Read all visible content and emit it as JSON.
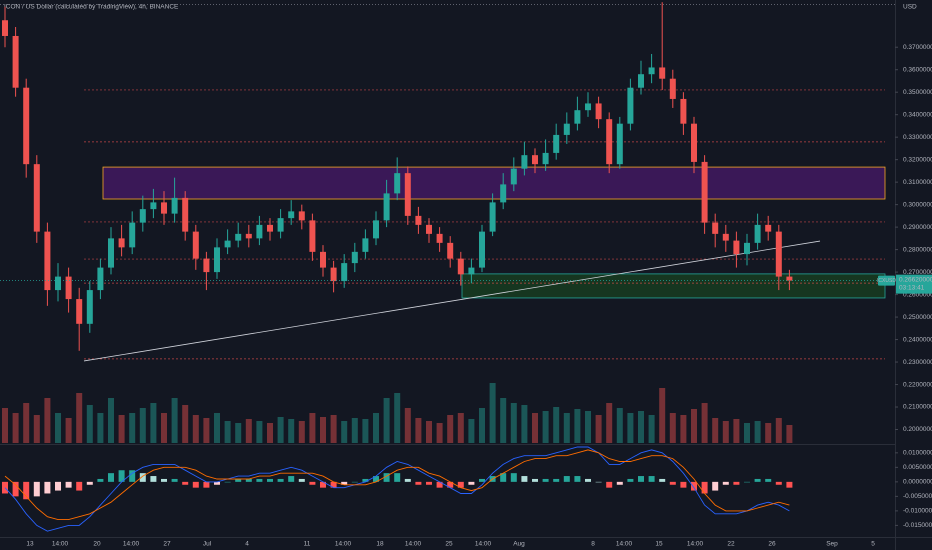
{
  "chart_data": {
    "type": "candlestick",
    "title": "ICON / US Dollar (calculated by TradingView), 4h, BINANCE",
    "axis_unit": "USD",
    "x_labels": [
      "13",
      "14:00",
      "20",
      "14:00",
      "27",
      "Jul",
      "4",
      "11",
      "14:00",
      "18",
      "14:00",
      "25",
      "14:00",
      "Aug",
      "8",
      "14:00",
      "15",
      "14:00",
      "22",
      "26",
      "Sep",
      "5"
    ],
    "open": [
      0.382,
      0.375,
      0.352,
      0.318,
      0.288,
      0.262,
      0.268,
      0.258,
      0.247,
      0.262,
      0.272,
      0.285,
      0.281,
      0.292,
      0.298,
      0.301,
      0.296,
      0.303,
      0.288,
      0.276,
      0.27,
      0.281,
      0.284,
      0.287,
      0.285,
      0.291,
      0.288,
      0.294,
      0.297,
      0.293,
      0.279,
      0.272,
      0.266,
      0.274,
      0.279,
      0.285,
      0.293,
      0.305,
      0.314,
      0.295,
      0.291,
      0.287,
      0.283,
      0.276,
      0.269,
      0.272,
      0.288,
      0.301,
      0.309,
      0.316,
      0.322,
      0.318,
      0.323,
      0.331,
      0.336,
      0.342,
      0.345,
      0.338,
      0.318,
      0.336,
      0.352,
      0.358,
      0.361,
      0.356,
      0.347,
      0.336,
      0.319,
      0.292,
      0.287,
      0.284,
      0.278,
      0.283,
      0.291,
      0.288,
      0.268
    ],
    "high": [
      0.388,
      0.379,
      0.356,
      0.322,
      0.292,
      0.274,
      0.272,
      0.263,
      0.266,
      0.276,
      0.29,
      0.291,
      0.297,
      0.304,
      0.307,
      0.306,
      0.312,
      0.306,
      0.291,
      0.279,
      0.285,
      0.289,
      0.292,
      0.291,
      0.295,
      0.294,
      0.298,
      0.302,
      0.3,
      0.296,
      0.282,
      0.275,
      0.278,
      0.283,
      0.289,
      0.297,
      0.311,
      0.321,
      0.317,
      0.299,
      0.294,
      0.29,
      0.286,
      0.279,
      0.276,
      0.291,
      0.305,
      0.314,
      0.321,
      0.328,
      0.325,
      0.329,
      0.336,
      0.341,
      0.348,
      0.35,
      0.348,
      0.341,
      0.339,
      0.356,
      0.364,
      0.367,
      0.39,
      0.36,
      0.35,
      0.339,
      0.322,
      0.296,
      0.291,
      0.288,
      0.287,
      0.296,
      0.295,
      0.291,
      0.271
    ],
    "low": [
      0.37,
      0.348,
      0.312,
      0.283,
      0.255,
      0.257,
      0.252,
      0.235,
      0.243,
      0.258,
      0.269,
      0.277,
      0.278,
      0.288,
      0.294,
      0.291,
      0.292,
      0.284,
      0.271,
      0.262,
      0.267,
      0.278,
      0.281,
      0.281,
      0.282,
      0.284,
      0.285,
      0.291,
      0.289,
      0.275,
      0.268,
      0.261,
      0.263,
      0.27,
      0.276,
      0.282,
      0.29,
      0.302,
      0.291,
      0.287,
      0.283,
      0.279,
      0.272,
      0.264,
      0.265,
      0.27,
      0.286,
      0.298,
      0.306,
      0.313,
      0.314,
      0.315,
      0.32,
      0.327,
      0.333,
      0.339,
      0.334,
      0.314,
      0.316,
      0.333,
      0.349,
      0.354,
      0.351,
      0.343,
      0.331,
      0.314,
      0.287,
      0.281,
      0.279,
      0.272,
      0.273,
      0.28,
      0.284,
      0.262,
      0.262
    ],
    "close": [
      0.375,
      0.352,
      0.318,
      0.288,
      0.262,
      0.268,
      0.258,
      0.247,
      0.262,
      0.272,
      0.285,
      0.281,
      0.292,
      0.298,
      0.301,
      0.296,
      0.303,
      0.288,
      0.276,
      0.27,
      0.281,
      0.284,
      0.287,
      0.285,
      0.291,
      0.288,
      0.294,
      0.297,
      0.293,
      0.279,
      0.272,
      0.266,
      0.274,
      0.279,
      0.285,
      0.293,
      0.305,
      0.314,
      0.295,
      0.291,
      0.287,
      0.283,
      0.276,
      0.269,
      0.272,
      0.288,
      0.301,
      0.309,
      0.316,
      0.322,
      0.318,
      0.323,
      0.331,
      0.336,
      0.342,
      0.345,
      0.338,
      0.318,
      0.336,
      0.352,
      0.358,
      0.361,
      0.356,
      0.347,
      0.336,
      0.319,
      0.292,
      0.287,
      0.284,
      0.278,
      0.283,
      0.291,
      0.288,
      0.268,
      0.2662
    ],
    "up_color": "#26a69a",
    "down_color": "#ef5350",
    "ylim": [
      0.194,
      0.391
    ],
    "yticks": [
      {
        "value": 0.37,
        "label": "0.37000000"
      },
      {
        "value": 0.36,
        "label": "0.36000000"
      },
      {
        "value": 0.35,
        "label": "0.35000000"
      },
      {
        "value": 0.34,
        "label": "0.34000000"
      },
      {
        "value": 0.33,
        "label": "0.33000000"
      },
      {
        "value": 0.32,
        "label": "0.32000000"
      },
      {
        "value": 0.31,
        "label": "0.31000000"
      },
      {
        "value": 0.3,
        "label": "0.30000000"
      },
      {
        "value": 0.29,
        "label": "0.29000000"
      },
      {
        "value": 0.28,
        "label": "0.28000000"
      },
      {
        "value": 0.27,
        "label": "0.27000000"
      },
      {
        "value": 0.26,
        "label": "0.26000000"
      },
      {
        "value": 0.25,
        "label": "0.25000000"
      },
      {
        "value": 0.24,
        "label": "0.24000000"
      },
      {
        "value": 0.23,
        "label": "0.23000000"
      },
      {
        "value": 0.22,
        "label": "0.22000000"
      },
      {
        "value": 0.21,
        "label": "0.21000000"
      },
      {
        "value": 0.2,
        "label": "0.20000000"
      }
    ],
    "grid": false,
    "levels": [
      0.351,
      0.3279,
      0.2923,
      0.2758,
      0.2651,
      0.2314
    ],
    "level_color": "#ef5350",
    "top_level": 0.389,
    "zones": [
      {
        "low": 0.3025,
        "high": 0.3167,
        "color": "#6a1b9a",
        "border": "#f9a825"
      },
      {
        "low": 0.2585,
        "high": 0.2692,
        "color": "#1b5e20",
        "border": "#26a69a"
      }
    ],
    "trendline": [
      0.2305,
      0.2838
    ],
    "last_price": {
      "symbol": "ICXUSD",
      "price": {
        "value": 0.2662,
        "label": "0.26620000"
      },
      "countdown": "03:13:41",
      "color": "#26a69a"
    },
    "volume": {
      "ylim": [
        0,
        100
      ],
      "values": [
        35,
        30,
        40,
        28,
        45,
        30,
        25,
        50,
        38,
        30,
        45,
        28,
        30,
        35,
        40,
        30,
        45,
        38,
        28,
        25,
        30,
        22,
        20,
        24,
        22,
        20,
        26,
        24,
        22,
        30,
        26,
        28,
        22,
        25,
        24,
        30,
        45,
        50,
        35,
        25,
        22,
        20,
        28,
        30,
        24,
        35,
        60,
        45,
        40,
        38,
        30,
        32,
        36,
        30,
        34,
        32,
        28,
        40,
        35,
        30,
        32,
        28,
        55,
        30,
        28,
        34,
        40,
        25,
        22,
        24,
        20,
        22,
        20,
        25,
        18
      ]
    },
    "macd": {
      "ylim": [
        -0.019,
        0.0127
      ],
      "yticks": [
        {
          "value": 0.01,
          "label": "0.01000000"
        },
        {
          "value": 0.005,
          "label": "0.00500000"
        },
        {
          "value": 0,
          "label": "0.00000000"
        },
        {
          "value": -0.005,
          "label": "-0.00500000"
        },
        {
          "value": -0.01,
          "label": "-0.01000000"
        },
        {
          "value": -0.015,
          "label": "-0.01500000"
        }
      ],
      "histogram": [
        -0.004,
        -0.005,
        -0.006,
        -0.005,
        -0.004,
        -0.003,
        -0.002,
        -0.003,
        -0.001,
        0.001,
        0.003,
        0.004,
        0.004,
        0.003,
        0.002,
        0.001,
        0.001,
        -0.001,
        -0.002,
        -0.002,
        -0.001,
        0,
        0.001,
        0.001,
        0.001,
        0.001,
        0.001,
        0.002,
        0.001,
        -0.001,
        -0.002,
        -0.002,
        -0.001,
        0,
        0.001,
        0.002,
        0.003,
        0.003,
        0.001,
        -0.001,
        -0.001,
        -0.002,
        -0.002,
        -0.002,
        -0.001,
        0.001,
        0.002,
        0.003,
        0.003,
        0.002,
        0.001,
        0.001,
        0.001,
        0.002,
        0.002,
        0.001,
        0,
        -0.002,
        -0.001,
        0.001,
        0.002,
        0.002,
        0.001,
        -0.001,
        -0.002,
        -0.003,
        -0.004,
        -0.003,
        -0.001,
        -0.001,
        0,
        0.001,
        0.001,
        -0.001,
        -0.002
      ],
      "macd_line": {
        "color": "#2962ff",
        "values": [
          -0.002,
          -0.006,
          -0.011,
          -0.015,
          -0.017,
          -0.016,
          -0.015,
          -0.015,
          -0.012,
          -0.008,
          -0.004,
          0,
          0.003,
          0.005,
          0.006,
          0.006,
          0.006,
          0.004,
          0.002,
          0,
          0,
          0.001,
          0.002,
          0.002,
          0.003,
          0.003,
          0.004,
          0.005,
          0.004,
          0.002,
          0,
          -0.002,
          -0.002,
          -0.001,
          0,
          0.002,
          0.005,
          0.007,
          0.006,
          0.004,
          0.002,
          0,
          -0.002,
          -0.004,
          -0.004,
          -0.001,
          0.003,
          0.006,
          0.008,
          0.009,
          0.009,
          0.009,
          0.01,
          0.011,
          0.012,
          0.012,
          0.01,
          0.006,
          0.006,
          0.008,
          0.01,
          0.011,
          0.01,
          0.007,
          0.003,
          -0.002,
          -0.008,
          -0.011,
          -0.011,
          -0.011,
          -0.01,
          -0.008,
          -0.007,
          -0.008,
          -0.01
        ]
      },
      "signal_line": {
        "color": "#ff6d00",
        "values": [
          0.002,
          -0.001,
          -0.005,
          -0.009,
          -0.012,
          -0.013,
          -0.013,
          -0.012,
          -0.011,
          -0.009,
          -0.007,
          -0.004,
          -0.001,
          0.002,
          0.004,
          0.005,
          0.005,
          0.005,
          0.004,
          0.002,
          0.001,
          0.001,
          0.001,
          0.001,
          0.002,
          0.002,
          0.003,
          0.003,
          0.003,
          0.003,
          0.002,
          0,
          -0.001,
          -0.001,
          -0.001,
          0,
          0.002,
          0.004,
          0.005,
          0.005,
          0.003,
          0.002,
          0,
          -0.002,
          -0.003,
          -0.002,
          0.001,
          0.003,
          0.005,
          0.007,
          0.008,
          0.008,
          0.009,
          0.009,
          0.01,
          0.011,
          0.01,
          0.008,
          0.007,
          0.007,
          0.008,
          0.009,
          0.009,
          0.008,
          0.005,
          0.001,
          -0.004,
          -0.008,
          -0.01,
          -0.01,
          -0.01,
          -0.009,
          -0.008,
          -0.007,
          -0.008
        ]
      }
    }
  }
}
